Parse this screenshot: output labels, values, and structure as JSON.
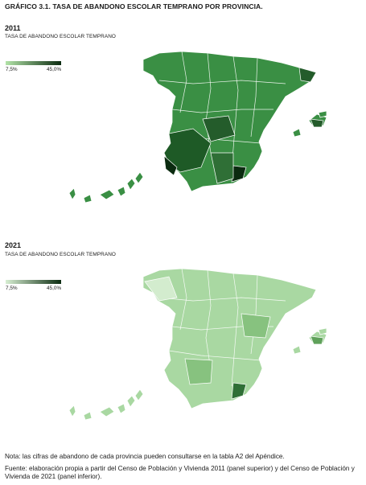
{
  "figure": {
    "title": "GRÁFICO 3.1. TASA DE ABANDONO ESCOLAR TEMPRANO POR PROVINCIA."
  },
  "panels": [
    {
      "year": "2011",
      "subtitle": "TASA DE ABANDONO ESCOLAR TEMPRANO",
      "legend": {
        "min": "7,5%",
        "max": "45,0%",
        "color_low": "#b2e3a8",
        "color_high": "#0b2b10"
      },
      "base_color": "#3a8f44"
    },
    {
      "year": "2021",
      "subtitle": "TASA DE ABANDONO ESCOLAR TEMPRANO",
      "legend": {
        "min": "7,5%",
        "max": "45,0%",
        "color_low": "#d7eed2",
        "color_high": "#0b2b10"
      },
      "base_color": "#a9d8a2"
    }
  ],
  "notes": {
    "note": "Nota: las cifras de abandono de cada provincia pueden consultarse en la tabla A2 del Apéndice.",
    "source": "Fuente: elaboración propia a partir del Censo de Población y Vivienda 2011 (panel superior) y del Censo de Población y Vivienda de 2021 (panel inferior)."
  }
}
